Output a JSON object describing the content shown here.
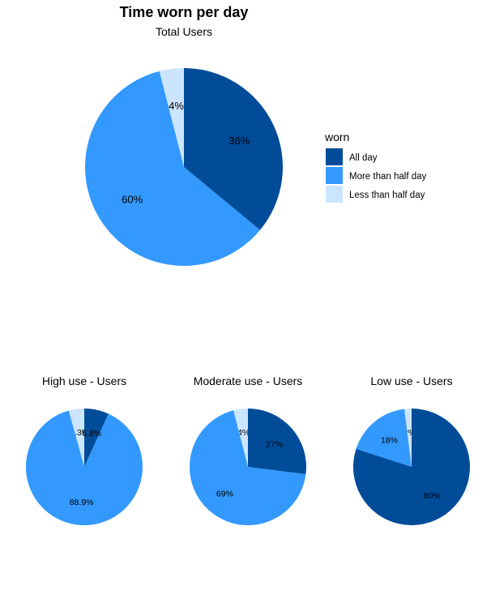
{
  "title": "Time worn per day",
  "legend": {
    "title": "worn",
    "entries": [
      {
        "label": "All day",
        "color": "#004c99"
      },
      {
        "label": "More than half day",
        "color": "#3399ff"
      },
      {
        "label": "Less than half day",
        "color": "#cce5ff"
      }
    ]
  },
  "chart_data": [
    {
      "type": "pie",
      "title": "Total Users",
      "categories": [
        "All day",
        "More than half day",
        "Less than half day"
      ],
      "values": [
        36,
        60,
        4
      ],
      "labels": [
        "36%",
        "60%",
        "4%"
      ]
    },
    {
      "type": "pie",
      "title": "High use - Users",
      "categories": [
        "All day",
        "More than half day",
        "Less than half day"
      ],
      "values": [
        6.8,
        88.9,
        4.3
      ],
      "labels": [
        "6.8%",
        "88.9%",
        "4.3%"
      ]
    },
    {
      "type": "pie",
      "title": "Moderate use - Users",
      "categories": [
        "All day",
        "More than half day",
        "Less than half day"
      ],
      "values": [
        27,
        69,
        4
      ],
      "labels": [
        "27%",
        "69%",
        "4%"
      ]
    },
    {
      "type": "pie",
      "title": "Low use - Users",
      "categories": [
        "All day",
        "More than half day",
        "Less than half day"
      ],
      "values": [
        80,
        18,
        2
      ],
      "labels": [
        "80%",
        "18%",
        "2%"
      ]
    }
  ]
}
